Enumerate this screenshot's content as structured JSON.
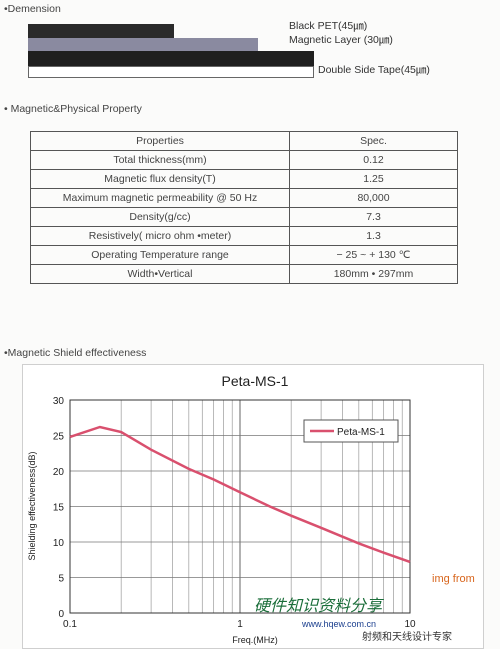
{
  "dimension": {
    "title": "•Demension",
    "layers": [
      {
        "label": "Black PET(45㎛)",
        "color": "#2a2a2a"
      },
      {
        "label": "Magnetic Layer (30㎛)",
        "color": "#8a8aa0"
      },
      {
        "label": "",
        "color": "#1f1f1f"
      },
      {
        "label": "Double Side Tape(45㎛)",
        "color": "#ffffff"
      }
    ]
  },
  "property": {
    "title": "• Magnetic&Physical Property",
    "headers": [
      "Properties",
      "Spec."
    ],
    "rows": [
      [
        "Total thickness(mm)",
        "0.12"
      ],
      [
        "Magnetic flux density(T)",
        "1.25"
      ],
      [
        "Maximum magnetic permeability @ 50 Hz",
        "80,000"
      ],
      [
        "Density(g/cc)",
        "7.3"
      ],
      [
        "Resistively( micro ohm •meter)",
        "1.3"
      ],
      [
        "Operating Temperature range",
        "− 25 ~ + 130 ℃"
      ],
      [
        "Width•Vertical",
        "180mm • 297mm"
      ]
    ]
  },
  "shield": {
    "title": "•Magnetic Shield effectiveness"
  },
  "chart_data": {
    "type": "line",
    "title": "Peta-MS-1",
    "xlabel": "Freq.(MHz)",
    "ylabel": "Shielding effectiveness(dB)",
    "xscale": "log",
    "xlim": [
      0.1,
      10
    ],
    "ylim": [
      0,
      30
    ],
    "xticks": [
      0.1,
      1,
      10
    ],
    "xtick_labels": [
      "0.1",
      "1",
      "10"
    ],
    "yticks": [
      0,
      5,
      10,
      15,
      20,
      25,
      30
    ],
    "grid": true,
    "legend_position": "top-right",
    "series": [
      {
        "name": "Peta-MS-1",
        "color": "#d9506e",
        "x": [
          0.1,
          0.15,
          0.2,
          0.3,
          0.5,
          0.7,
          1,
          1.5,
          2,
          3,
          5,
          7,
          10
        ],
        "y": [
          24.8,
          26.2,
          25.5,
          23.0,
          20.3,
          18.8,
          17.0,
          15.0,
          13.7,
          12.0,
          9.8,
          8.5,
          7.2
        ]
      }
    ]
  },
  "watermark": {
    "img_from": "img from",
    "line1": "硬件知识资料分享",
    "line2": "www.hqew.com.cn",
    "line3": "射频和天线设计专家"
  }
}
